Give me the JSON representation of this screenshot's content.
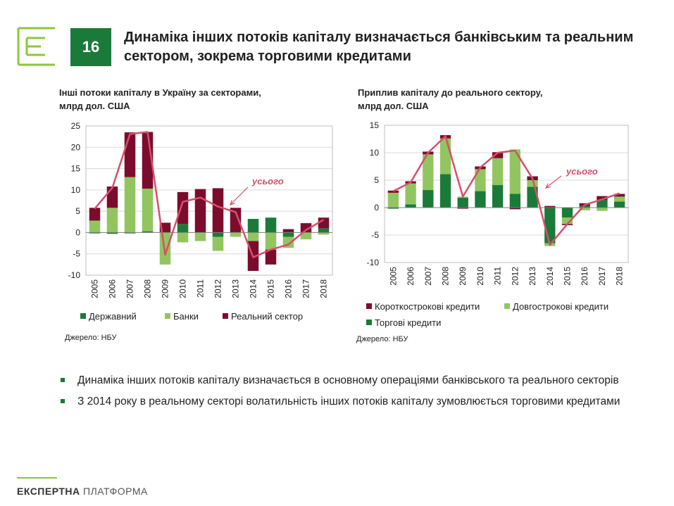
{
  "slide": {
    "number": "16",
    "title": "Динаміка інших потоків капіталу визначається банківським та реальним сектором, зокрема торговими кредитами",
    "footer_bold": "ЕКСПЕРТНА",
    "footer_light": "ПЛАТФОРМА",
    "bullets": [
      "Динаміка інших потоків капіталу визначається в основному операціями банківського та реального секторів",
      "З 2014 року в реальному секторі волатильність інших потоків капіталу зумовлюється торговими кредитами"
    ]
  },
  "left_chart": {
    "title_line1": "Інші потоки капіталу в Україну за секторами,",
    "title_line2": "млрд дол. США",
    "source": "Джерело: НБУ",
    "annotation": "усього"
  },
  "right_chart": {
    "title_line1": "Приплив капіталу до реального сектору,",
    "title_line2": "млрд дол. США",
    "source": "Джерело: НБУ",
    "annotation": "усього"
  },
  "chart_data": [
    {
      "type": "bar",
      "stacked": true,
      "title": "Інші потоки капіталу в Україну за секторами, млрд дол. США",
      "categories": [
        "2005",
        "2006",
        "2007",
        "2008",
        "2009",
        "2010",
        "2011",
        "2012",
        "2013",
        "2014",
        "2015",
        "2016",
        "2017",
        "2018"
      ],
      "ylim": [
        -10,
        25
      ],
      "yticks": [
        25,
        20,
        15,
        10,
        5,
        0,
        -5,
        -10
      ],
      "grid": true,
      "legend_position": "bottom",
      "series": [
        {
          "name": "Державний",
          "color": "#1a7a3a",
          "values": [
            -0.2,
            -0.3,
            -0.2,
            0.3,
            0,
            2.0,
            0,
            -1.0,
            0,
            3.2,
            3.5,
            -1.0,
            0,
            1.0
          ]
        },
        {
          "name": "Банки",
          "color": "#92c560",
          "values": [
            2.8,
            5.8,
            13.0,
            10.0,
            -7.5,
            -2.3,
            -2.0,
            -3.3,
            -1.0,
            -2.0,
            -4.0,
            -2.6,
            -1.6,
            -0.5
          ]
        },
        {
          "name": "Реальний сектор",
          "color": "#7b0c2e",
          "values": [
            3.0,
            5.0,
            10.5,
            13.3,
            2.3,
            7.5,
            10.2,
            10.4,
            5.8,
            -7.0,
            -3.5,
            0.8,
            2.2,
            2.5
          ]
        }
      ],
      "total": {
        "name": "усього",
        "color": "#d5506a",
        "values": [
          5.6,
          10.5,
          23.1,
          23.6,
          -5.2,
          7.2,
          8.2,
          6.1,
          4.8,
          -5.8,
          -4.0,
          -2.8,
          0.6,
          3.0
        ]
      }
    },
    {
      "type": "bar",
      "stacked": true,
      "title": "Приплив капіталу до реального сектору, млрд дол. США",
      "categories": [
        "2005",
        "2006",
        "2007",
        "2008",
        "2009",
        "2010",
        "2011",
        "2012",
        "2013",
        "2014",
        "2015",
        "2016",
        "2017",
        "2018"
      ],
      "ylim": [
        -10,
        15
      ],
      "yticks": [
        15,
        10,
        5,
        0,
        -5,
        -10
      ],
      "grid": true,
      "legend_position": "bottom",
      "series": [
        {
          "name": "Торгові кредити",
          "color": "#1a7a3a",
          "values": [
            -0.2,
            0.6,
            3.2,
            6.1,
            1.8,
            3.0,
            4.1,
            2.5,
            3.8,
            -6.5,
            -1.8,
            0.3,
            1.4,
            1.1
          ]
        },
        {
          "name": "Довгострокові кредити",
          "color": "#92c560",
          "values": [
            2.7,
            3.8,
            6.5,
            6.5,
            0.2,
            4.0,
            4.9,
            8.1,
            1.2,
            -0.5,
            -1.2,
            -0.5,
            -0.6,
            0.9
          ]
        },
        {
          "name": "Короткострокові кредити",
          "color": "#7b0c2e",
          "values": [
            0.4,
            0.4,
            0.5,
            0.6,
            -0.2,
            0.5,
            1.1,
            -0.3,
            0.7,
            0.3,
            -0.2,
            0.5,
            0.7,
            0.5
          ]
        }
      ],
      "total": {
        "name": "усього",
        "color": "#d5506a",
        "values": [
          3.0,
          4.6,
          10.0,
          13.0,
          2.0,
          7.3,
          10.0,
          10.4,
          5.3,
          -6.8,
          -3.0,
          0.5,
          1.5,
          2.6
        ]
      }
    }
  ]
}
